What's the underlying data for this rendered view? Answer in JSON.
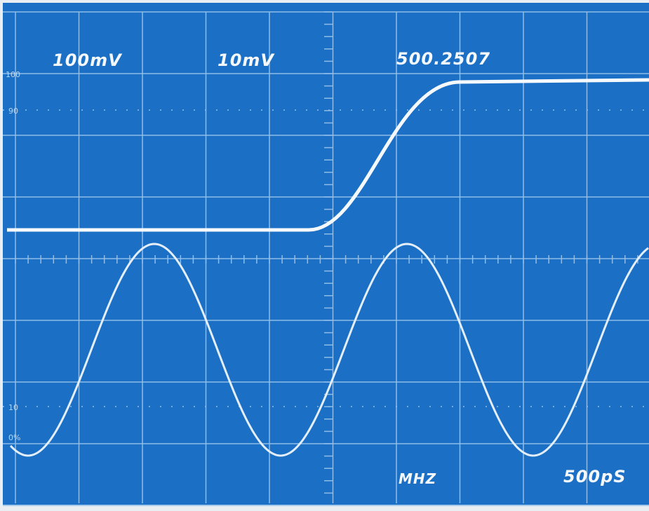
{
  "screen": {
    "readouts": {
      "ch1_scale": "100mV",
      "ch2_scale": "10mV",
      "frequency": "500.2507",
      "frequency_unit": "MHZ",
      "time_scale": "500pS"
    },
    "graticule_labels": {
      "top": "100",
      "upper": "90",
      "lower": "10",
      "bottom": "0%"
    }
  }
}
